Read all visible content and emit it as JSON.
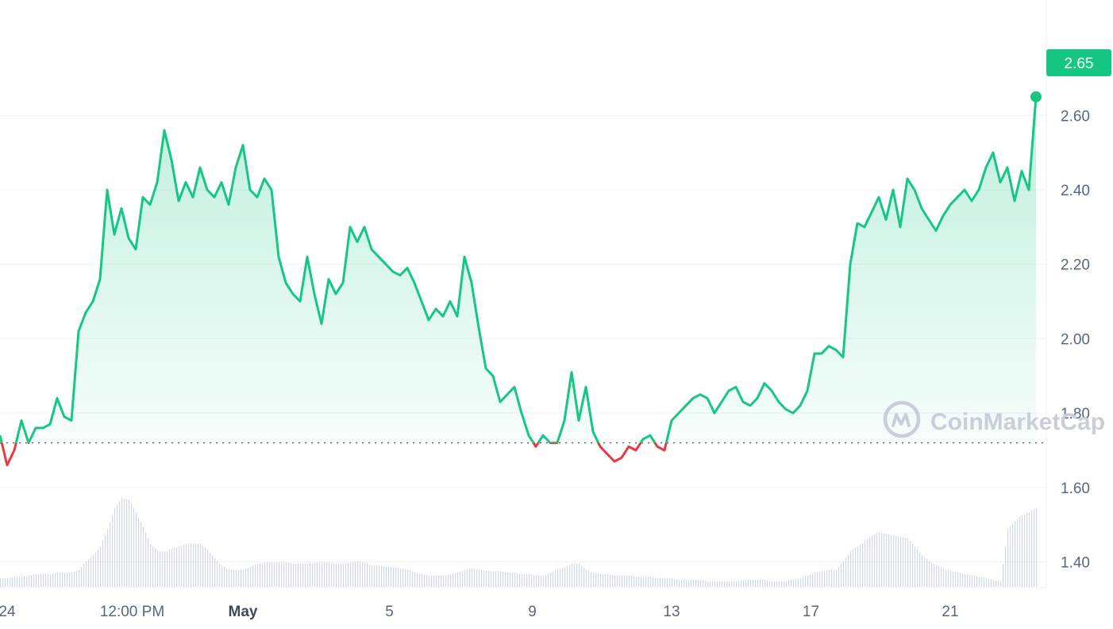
{
  "watermark": "CoinMarketCap",
  "current_price_label": "2.65",
  "colors": {
    "up": "#16c784",
    "down": "#ea3943",
    "volume": "#cfd6e4",
    "grid": "#eff2f5",
    "text": "#58667e"
  },
  "chart_data": {
    "type": "line",
    "title": "",
    "xlabel": "",
    "ylabel": "",
    "ylim": [
      1.335,
      2.91
    ],
    "baseline": 1.72,
    "last_value": 2.65,
    "y_ticks": [
      "1.40",
      "1.60",
      "1.80",
      "2.00",
      "2.20",
      "2.40",
      "2.60"
    ],
    "x_tick_labels": [
      {
        "label": "24",
        "bold": false
      },
      {
        "label": "12:00 PM",
        "bold": false
      },
      {
        "label": "May",
        "bold": true
      },
      {
        "label": "5",
        "bold": false
      },
      {
        "label": "9",
        "bold": false
      },
      {
        "label": "13",
        "bold": false
      },
      {
        "label": "17",
        "bold": false
      },
      {
        "label": "21",
        "bold": false
      }
    ],
    "x_index_range": [
      0,
      145
    ],
    "x_tick_positions": [
      1,
      18.5,
      34,
      54.5,
      74.5,
      94,
      113.5,
      133
    ],
    "series": [
      {
        "values": [
          1.74,
          1.66,
          1.7,
          1.78,
          1.72,
          1.76,
          1.76,
          1.77,
          1.84,
          1.79,
          1.78,
          2.02,
          2.07,
          2.1,
          2.16,
          2.4,
          2.28,
          2.35,
          2.27,
          2.24,
          2.38,
          2.36,
          2.42,
          2.56,
          2.48,
          2.37,
          2.42,
          2.38,
          2.46,
          2.4,
          2.38,
          2.42,
          2.36,
          2.46,
          2.52,
          2.4,
          2.38,
          2.43,
          2.4,
          2.22,
          2.15,
          2.12,
          2.1,
          2.22,
          2.12,
          2.04,
          2.16,
          2.12,
          2.15,
          2.3,
          2.26,
          2.3,
          2.24,
          2.22,
          2.2,
          2.18,
          2.17,
          2.19,
          2.15,
          2.1,
          2.05,
          2.08,
          2.06,
          2.1,
          2.06,
          2.22,
          2.15,
          2.03,
          1.92,
          1.9,
          1.83,
          1.85,
          1.87,
          1.8,
          1.74,
          1.71,
          1.74,
          1.72,
          1.72,
          1.78,
          1.91,
          1.78,
          1.87,
          1.75,
          1.71,
          1.69,
          1.67,
          1.68,
          1.71,
          1.7,
          1.73,
          1.74,
          1.71,
          1.7,
          1.78,
          1.8,
          1.82,
          1.84,
          1.85,
          1.84,
          1.8,
          1.83,
          1.86,
          1.87,
          1.83,
          1.82,
          1.84,
          1.88,
          1.86,
          1.83,
          1.81,
          1.8,
          1.82,
          1.86,
          1.96,
          1.96,
          1.98,
          1.97,
          1.95,
          2.2,
          2.31,
          2.3,
          2.34,
          2.38,
          2.32,
          2.4,
          2.3,
          2.43,
          2.4,
          2.35,
          2.32,
          2.29,
          2.33,
          2.36,
          2.38,
          2.4,
          2.37,
          2.4,
          2.46,
          2.5,
          2.42,
          2.46,
          2.37,
          2.45,
          2.4,
          2.65
        ]
      }
    ],
    "volume": [
      0.06,
      0.06,
      0.07,
      0.07,
      0.08,
      0.09,
      0.09,
      0.09,
      0.1,
      0.1,
      0.1,
      0.12,
      0.18,
      0.22,
      0.28,
      0.4,
      0.55,
      0.62,
      0.61,
      0.52,
      0.42,
      0.3,
      0.25,
      0.24,
      0.27,
      0.28,
      0.3,
      0.3,
      0.3,
      0.26,
      0.2,
      0.15,
      0.12,
      0.12,
      0.12,
      0.14,
      0.16,
      0.17,
      0.17,
      0.17,
      0.17,
      0.16,
      0.16,
      0.16,
      0.17,
      0.17,
      0.17,
      0.16,
      0.16,
      0.17,
      0.18,
      0.17,
      0.15,
      0.15,
      0.14,
      0.14,
      0.13,
      0.12,
      0.1,
      0.09,
      0.08,
      0.08,
      0.08,
      0.09,
      0.1,
      0.12,
      0.13,
      0.12,
      0.11,
      0.11,
      0.11,
      0.1,
      0.1,
      0.09,
      0.09,
      0.08,
      0.08,
      0.1,
      0.12,
      0.14,
      0.16,
      0.16,
      0.12,
      0.1,
      0.09,
      0.09,
      0.08,
      0.08,
      0.08,
      0.07,
      0.07,
      0.07,
      0.06,
      0.06,
      0.06,
      0.05,
      0.05,
      0.05,
      0.05,
      0.04,
      0.04,
      0.04,
      0.04,
      0.04,
      0.05,
      0.05,
      0.05,
      0.05,
      0.04,
      0.04,
      0.04,
      0.05,
      0.06,
      0.08,
      0.1,
      0.11,
      0.12,
      0.12,
      0.18,
      0.25,
      0.28,
      0.32,
      0.36,
      0.38,
      0.37,
      0.36,
      0.35,
      0.34,
      0.28,
      0.22,
      0.18,
      0.15,
      0.13,
      0.11,
      0.1,
      0.09,
      0.08,
      0.07,
      0.06,
      0.05,
      0.04,
      0.4,
      0.46,
      0.5,
      0.52,
      0.55,
      0.3,
      0.22,
      0.18,
      0.17
    ]
  }
}
